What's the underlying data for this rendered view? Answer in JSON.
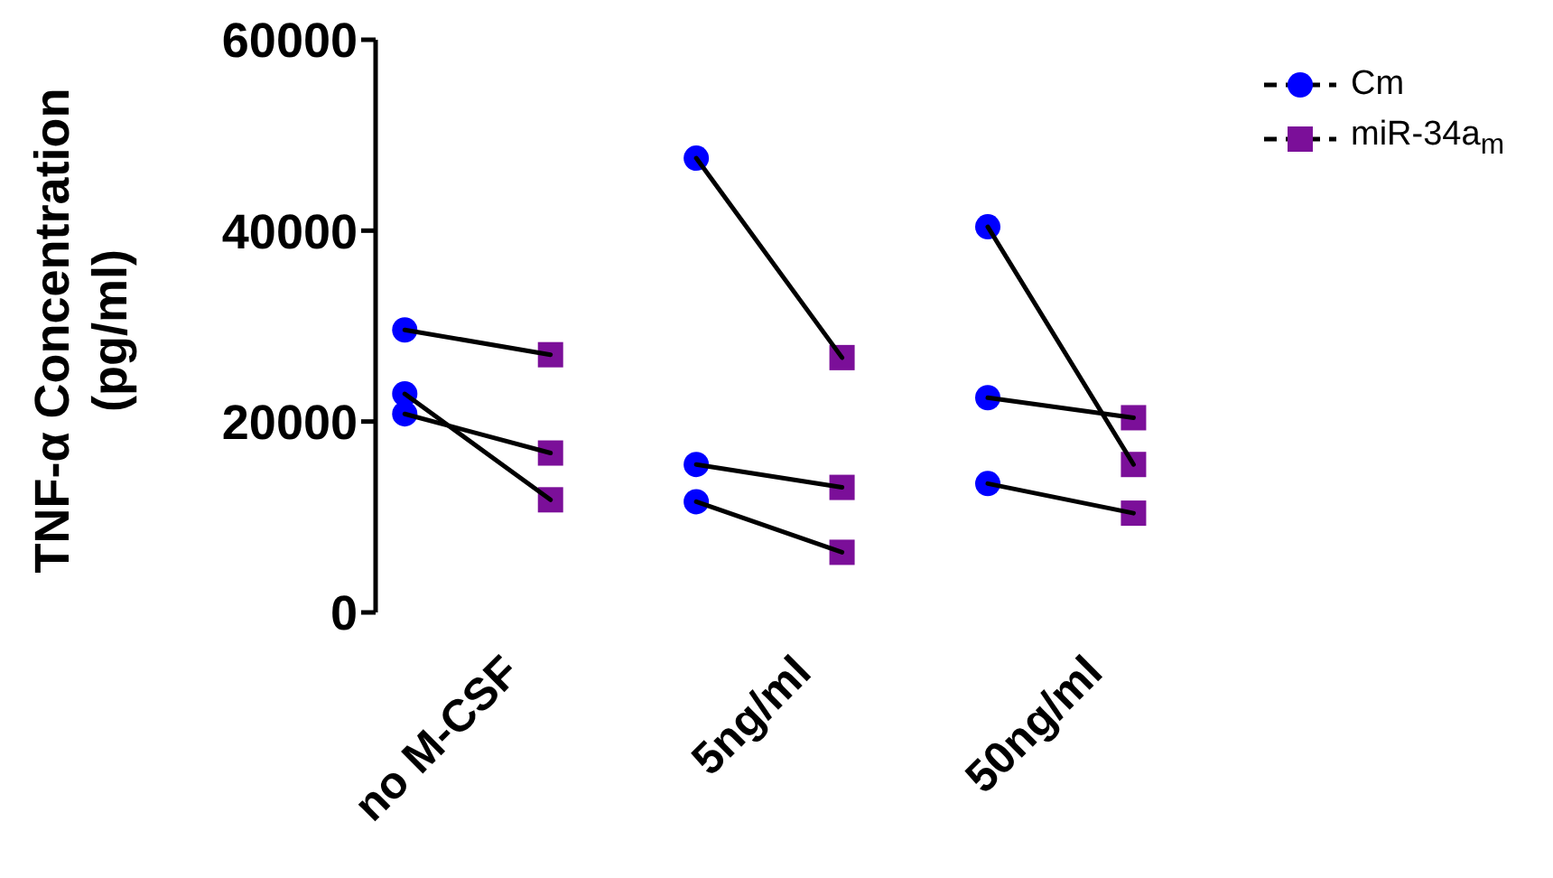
{
  "chart_data": {
    "type": "scatter",
    "ylabel": "TNF-α Concentration\n(pg/ml)",
    "categories": [
      "no M-CSF",
      "5ng/ml",
      "50ng/ml"
    ],
    "series": [
      {
        "name": "Cm",
        "color": "#0000ff",
        "marker": "circle",
        "x": [
          "no M-CSF",
          "no M-CSF",
          "no M-CSF",
          "5ng/ml",
          "5ng/ml",
          "5ng/ml",
          "50ng/ml",
          "50ng/ml",
          "50ng/ml"
        ],
        "values": [
          29600,
          22900,
          20800,
          47600,
          15500,
          11600,
          40400,
          22500,
          13500
        ]
      },
      {
        "name": "miR-34a$_{m}$",
        "color": "#7b0f99",
        "marker": "square",
        "x": [
          "no M-CSF",
          "no M-CSF",
          "no M-CSF",
          "5ng/ml",
          "5ng/ml",
          "5ng/ml",
          "50ng/ml",
          "50ng/ml",
          "50ng/ml"
        ],
        "values": [
          27000,
          11800,
          16700,
          26700,
          13100,
          6300,
          15500,
          20400,
          10400
        ]
      }
    ],
    "ylim": [
      0,
      60000
    ],
    "yticks": [
      0,
      20000,
      40000,
      60000
    ],
    "grid": false,
    "legend": "top right"
  }
}
